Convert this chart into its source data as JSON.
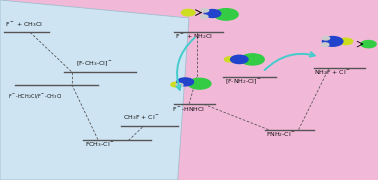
{
  "fig_width": 3.78,
  "fig_height": 1.8,
  "dpi": 100,
  "bg_color": "#f2b8d8",
  "panel_color": "#cce9f5",
  "line_color": "#555555",
  "mol_F_color": "#ccdd22",
  "mol_N_color": "#2244cc",
  "mol_Cl_color": "#33cc44",
  "mol_H_color": "#cccccc",
  "cyan_color": "#44cccc",
  "text_color": "#111111"
}
